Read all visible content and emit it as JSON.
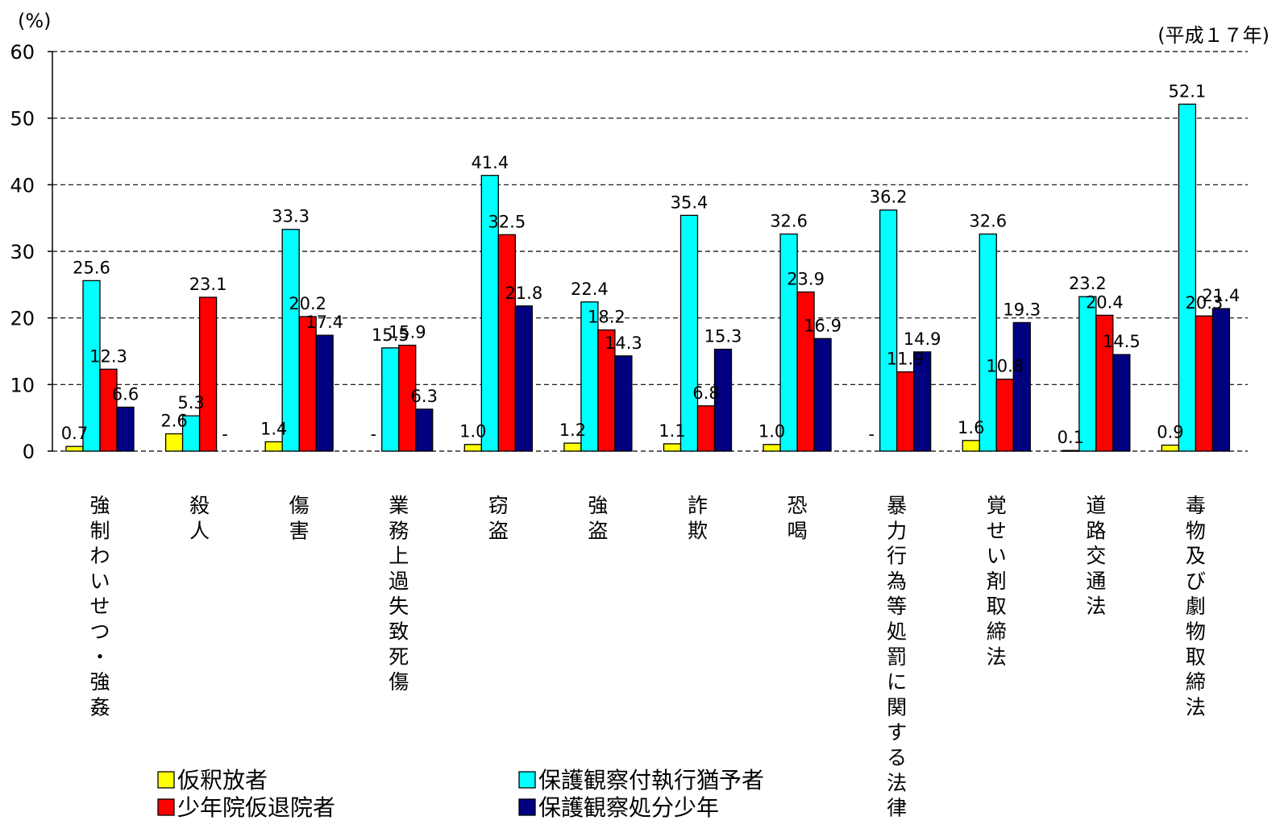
{
  "chart_data": {
    "type": "bar",
    "y_unit": "(%)",
    "year_note": "(平成１７年)",
    "ylim": [
      0,
      60
    ],
    "yticks": [
      0,
      10,
      20,
      30,
      40,
      50,
      60
    ],
    "grid": true,
    "legend_position": "bottom",
    "categories": [
      "強制わいせつ・強姦",
      "殺人",
      "傷害",
      "業務上過失致死傷",
      "窃盗",
      "強盗",
      "詐欺",
      "恐喝",
      "暴力行為等処罰に関する法律",
      "覚せい剤取締法",
      "道路交通法",
      "毒物及び劇物取締法"
    ],
    "series": [
      {
        "name": "仮釈放者",
        "color": "#FFFF00",
        "values": [
          0.7,
          2.6,
          1.4,
          null,
          1.0,
          1.2,
          1.1,
          1.0,
          null,
          1.6,
          0.1,
          0.9
        ],
        "labels": [
          "0.7",
          "2.6",
          "1.4",
          "-",
          "1.0",
          "1.2",
          "1.1",
          "1.0",
          "-",
          "1.6",
          "0.1",
          "0.9"
        ]
      },
      {
        "name": "保護観察付執行猶予者",
        "color": "#00FFFF",
        "values": [
          25.6,
          5.3,
          33.3,
          15.5,
          41.4,
          22.4,
          35.4,
          32.6,
          36.2,
          32.6,
          23.2,
          52.1
        ],
        "labels": [
          "25.6",
          "5.3",
          "33.3",
          "15.5",
          "41.4",
          "22.4",
          "35.4",
          "32.6",
          "36.2",
          "32.6",
          "23.2",
          "52.1"
        ]
      },
      {
        "name": "少年院仮退院者",
        "color": "#FF0000",
        "values": [
          12.3,
          23.1,
          20.2,
          15.9,
          32.5,
          18.2,
          6.8,
          23.9,
          11.9,
          10.8,
          20.4,
          20.3
        ],
        "labels": [
          "12.3",
          "23.1",
          "20.2",
          "15.9",
          "32.5",
          "18.2",
          "6.8",
          "23.9",
          "11.9",
          "10.8",
          "20.4",
          "20.3"
        ]
      },
      {
        "name": "保護観察処分少年",
        "color": "#000080",
        "values": [
          6.6,
          null,
          17.4,
          6.3,
          21.8,
          14.3,
          15.3,
          16.9,
          14.9,
          19.3,
          14.5,
          21.4
        ],
        "labels": [
          "6.6",
          "-",
          "17.4",
          "6.3",
          "21.8",
          "14.3",
          "15.3",
          "16.9",
          "14.9",
          "19.3",
          "14.5",
          "21.4"
        ]
      }
    ]
  }
}
